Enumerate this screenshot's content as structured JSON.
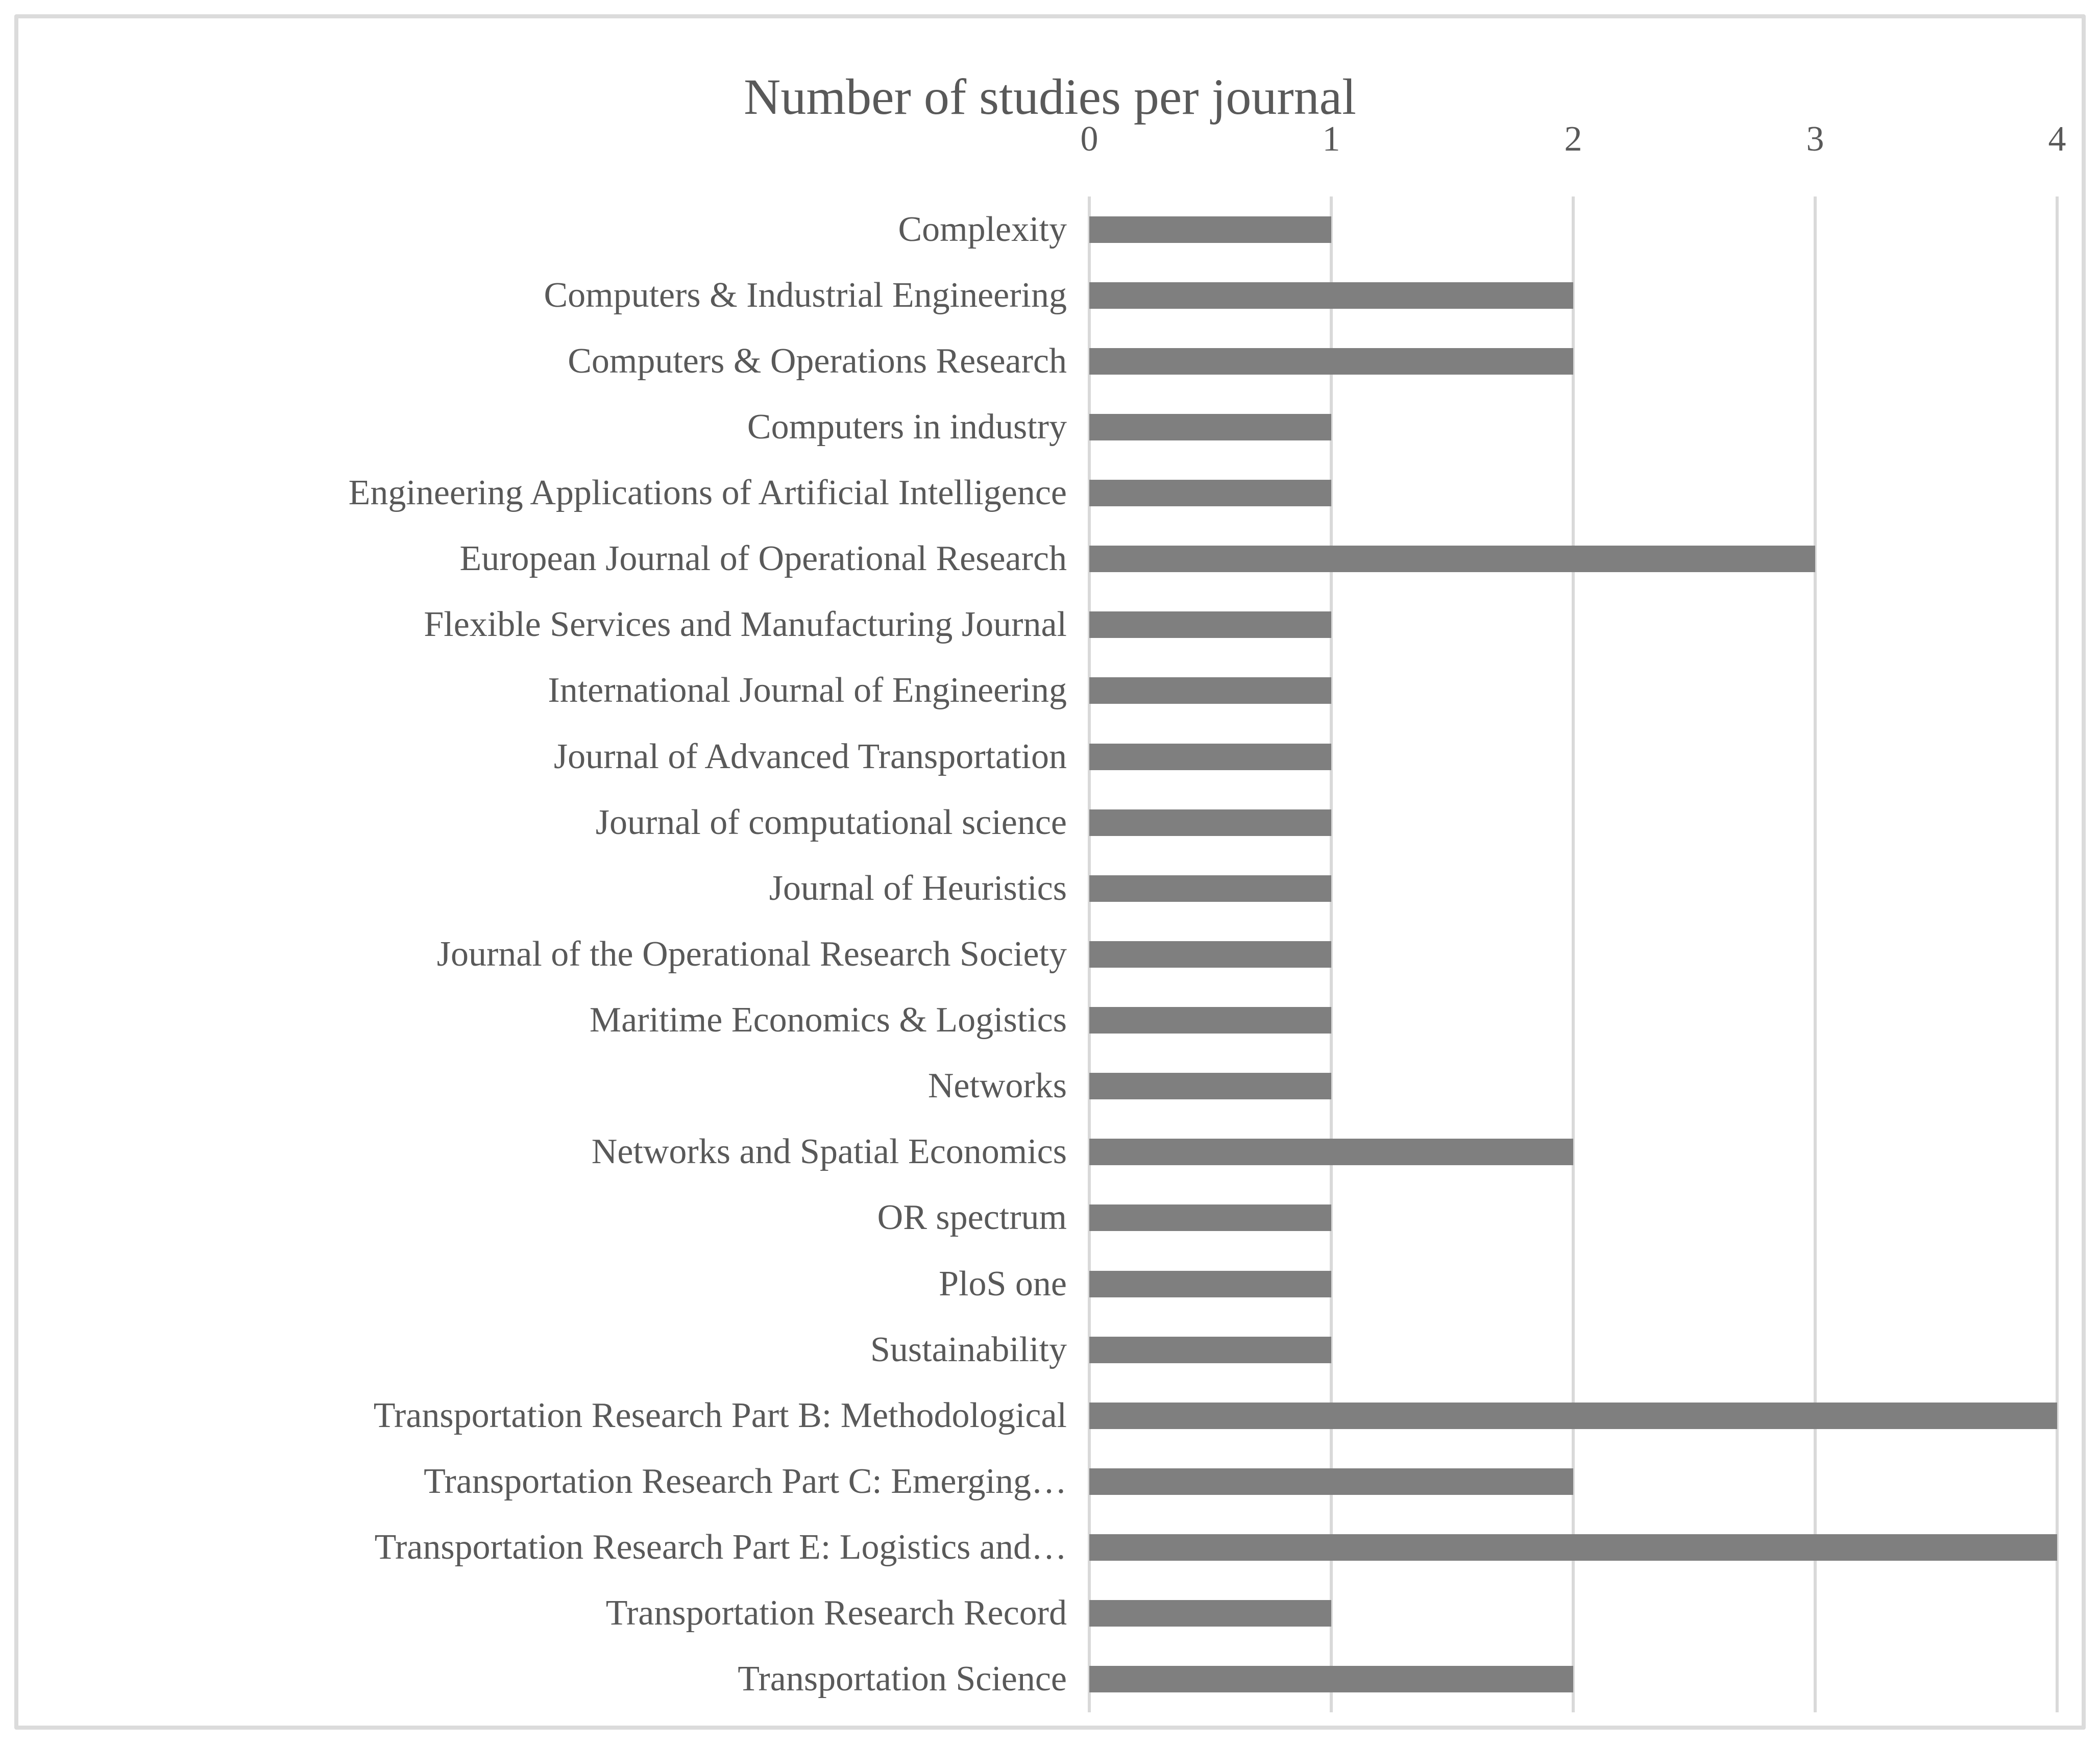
{
  "title": "Number of studies per journal",
  "colors": {
    "bar": "#7f7f7f",
    "text": "#595959",
    "gridline": "#d9d9d9",
    "border": "#dbdbdb",
    "background": "#ffffff"
  },
  "chart_data": {
    "type": "bar",
    "orientation": "horizontal",
    "title": "Number of studies per journal",
    "categories": [
      "Complexity",
      "Computers & Industrial Engineering",
      "Computers & Operations Research",
      "Computers in industry",
      "Engineering Applications of Artificial Intelligence",
      "European Journal of Operational Research",
      "Flexible Services and Manufacturing Journal",
      "International Journal of Engineering",
      "Journal of Advanced Transportation",
      "Journal of computational science",
      "Journal of Heuristics",
      "Journal of the Operational Research Society",
      "Maritime Economics & Logistics",
      "Networks",
      "Networks and Spatial Economics",
      "OR spectrum",
      "PloS one",
      "Sustainability",
      "Transportation Research Part B: Methodological",
      "Transportation Research Part C: Emerging…",
      "Transportation Research Part E: Logistics and…",
      "Transportation Research Record",
      "Transportation Science"
    ],
    "values": [
      1,
      2,
      2,
      1,
      1,
      3,
      1,
      1,
      1,
      1,
      1,
      1,
      1,
      1,
      2,
      1,
      1,
      1,
      4,
      2,
      4,
      1,
      2
    ],
    "xlabel": "",
    "ylabel": "",
    "xlim": [
      0,
      4
    ],
    "xticks": [
      "0",
      "1",
      "2",
      "3",
      "4"
    ],
    "tick_position": "top",
    "grid": "vertical-only",
    "legend": "none"
  }
}
